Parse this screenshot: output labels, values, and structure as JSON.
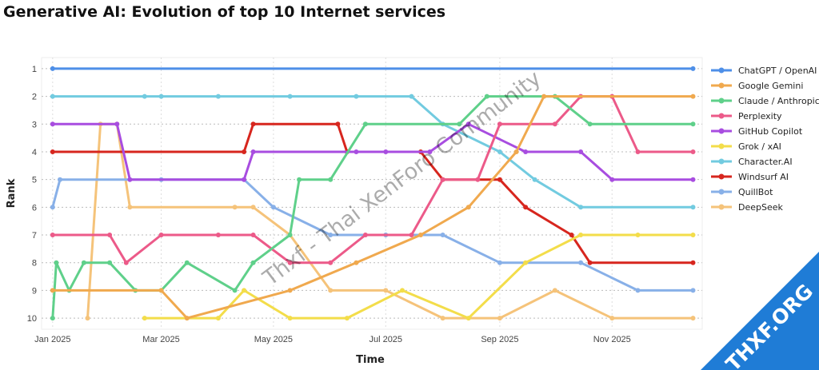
{
  "chart_data": {
    "type": "line",
    "title": "Generative AI: Evolution of top 10 Internet services",
    "xlabel": "Time",
    "ylabel": "Rank",
    "y_ticks": [
      "1",
      "2",
      "3",
      "4",
      "5",
      "6",
      "7",
      "8",
      "9",
      "10"
    ],
    "y_inverted": true,
    "ylim": [
      10.4,
      0.6
    ],
    "xlim": [
      "2024-12-26",
      "2025-12-20"
    ],
    "x_ticks": [
      {
        "date": "2025-01-01",
        "label": "Jan 2025"
      },
      {
        "date": "2025-03-01",
        "label": "Mar 2025"
      },
      {
        "date": "2025-05-01",
        "label": "May 2025"
      },
      {
        "date": "2025-07-01",
        "label": "Jul 2025"
      },
      {
        "date": "2025-09-01",
        "label": "Sep 2025"
      },
      {
        "date": "2025-11-01",
        "label": "Nov 2025"
      }
    ],
    "grid": true,
    "legend_position": "right",
    "series": [
      {
        "name": "ChatGPT / OpenAI",
        "color": "#4e8fe8",
        "points": [
          [
            "2025-01-01",
            1
          ],
          [
            "2025-12-15",
            1
          ]
        ]
      },
      {
        "name": "Google Gemini",
        "color": "#f0a94e",
        "points": [
          [
            "2025-01-01",
            9
          ],
          [
            "2025-03-01",
            9
          ],
          [
            "2025-03-15",
            10
          ],
          [
            "2025-05-10",
            9
          ],
          [
            "2025-06-15",
            8
          ],
          [
            "2025-07-20",
            7
          ],
          [
            "2025-08-15",
            6
          ],
          [
            "2025-09-10",
            4
          ],
          [
            "2025-09-25",
            2
          ],
          [
            "2025-12-15",
            2
          ]
        ]
      },
      {
        "name": "Claude / Anthropic",
        "color": "#5fd08a",
        "points": [
          [
            "2025-01-01",
            10
          ],
          [
            "2025-01-03",
            8
          ],
          [
            "2025-01-10",
            9
          ],
          [
            "2025-01-18",
            8
          ],
          [
            "2025-02-01",
            8
          ],
          [
            "2025-02-15",
            9
          ],
          [
            "2025-03-01",
            9
          ],
          [
            "2025-03-15",
            8
          ],
          [
            "2025-04-10",
            9
          ],
          [
            "2025-04-20",
            8
          ],
          [
            "2025-05-10",
            7
          ],
          [
            "2025-05-15",
            5
          ],
          [
            "2025-06-01",
            5
          ],
          [
            "2025-06-20",
            3
          ],
          [
            "2025-08-10",
            3
          ],
          [
            "2025-08-25",
            2
          ],
          [
            "2025-10-01",
            2
          ],
          [
            "2025-10-20",
            3
          ],
          [
            "2025-12-15",
            3
          ]
        ]
      },
      {
        "name": "Perplexity",
        "color": "#ec5a89",
        "points": [
          [
            "2025-01-01",
            7
          ],
          [
            "2025-02-01",
            7
          ],
          [
            "2025-02-10",
            8
          ],
          [
            "2025-03-01",
            7
          ],
          [
            "2025-04-01",
            7
          ],
          [
            "2025-04-20",
            7
          ],
          [
            "2025-05-10",
            8
          ],
          [
            "2025-06-01",
            8
          ],
          [
            "2025-06-20",
            7
          ],
          [
            "2025-07-15",
            7
          ],
          [
            "2025-08-01",
            5
          ],
          [
            "2025-08-20",
            5
          ],
          [
            "2025-09-01",
            3
          ],
          [
            "2025-10-01",
            3
          ],
          [
            "2025-10-15",
            2
          ],
          [
            "2025-11-01",
            2
          ],
          [
            "2025-11-15",
            4
          ],
          [
            "2025-12-15",
            4
          ]
        ]
      },
      {
        "name": "GitHub Copilot",
        "color": "#a84de0",
        "points": [
          [
            "2025-01-01",
            3
          ],
          [
            "2025-02-05",
            3
          ],
          [
            "2025-02-12",
            5
          ],
          [
            "2025-04-15",
            5
          ],
          [
            "2025-04-20",
            4
          ],
          [
            "2025-06-15",
            4
          ],
          [
            "2025-07-01",
            4
          ],
          [
            "2025-07-25",
            4
          ],
          [
            "2025-08-15",
            3
          ],
          [
            "2025-09-15",
            4
          ],
          [
            "2025-10-15",
            4
          ],
          [
            "2025-11-01",
            5
          ],
          [
            "2025-12-15",
            5
          ]
        ]
      },
      {
        "name": "Grok / xAI",
        "color": "#f3dd4a",
        "points": [
          [
            "2025-02-20",
            10
          ],
          [
            "2025-04-01",
            10
          ],
          [
            "2025-04-15",
            9
          ],
          [
            "2025-05-10",
            10
          ],
          [
            "2025-06-10",
            10
          ],
          [
            "2025-07-10",
            9
          ],
          [
            "2025-08-15",
            10
          ],
          [
            "2025-09-15",
            8
          ],
          [
            "2025-10-15",
            7
          ],
          [
            "2025-11-15",
            7
          ],
          [
            "2025-12-15",
            7
          ]
        ]
      },
      {
        "name": "Character.AI",
        "color": "#72cbe0",
        "points": [
          [
            "2025-01-01",
            2
          ],
          [
            "2025-02-20",
            2
          ],
          [
            "2025-03-01",
            2
          ],
          [
            "2025-04-01",
            2
          ],
          [
            "2025-05-10",
            2
          ],
          [
            "2025-06-15",
            2
          ],
          [
            "2025-07-15",
            2
          ],
          [
            "2025-08-01",
            3
          ],
          [
            "2025-09-01",
            4
          ],
          [
            "2025-09-20",
            5
          ],
          [
            "2025-10-15",
            6
          ],
          [
            "2025-12-15",
            6
          ]
        ]
      },
      {
        "name": "Windsurf AI",
        "color": "#d7261e",
        "points": [
          [
            "2025-01-01",
            4
          ],
          [
            "2025-04-15",
            4
          ],
          [
            "2025-04-20",
            3
          ],
          [
            "2025-06-05",
            3
          ],
          [
            "2025-06-10",
            4
          ],
          [
            "2025-07-20",
            4
          ],
          [
            "2025-08-01",
            5
          ],
          [
            "2025-09-01",
            5
          ],
          [
            "2025-09-15",
            6
          ],
          [
            "2025-10-10",
            7
          ],
          [
            "2025-10-20",
            8
          ],
          [
            "2025-12-15",
            8
          ]
        ]
      },
      {
        "name": "QuillBot",
        "color": "#88b0e8",
        "points": [
          [
            "2025-01-01",
            6
          ],
          [
            "2025-01-05",
            5
          ],
          [
            "2025-03-01",
            5
          ],
          [
            "2025-04-15",
            5
          ],
          [
            "2025-05-01",
            6
          ],
          [
            "2025-06-01",
            7
          ],
          [
            "2025-07-01",
            7
          ],
          [
            "2025-08-01",
            7
          ],
          [
            "2025-09-01",
            8
          ],
          [
            "2025-10-15",
            8
          ],
          [
            "2025-11-15",
            9
          ],
          [
            "2025-12-15",
            9
          ]
        ]
      },
      {
        "name": "DeepSeek",
        "color": "#f5c37a",
        "points": [
          [
            "2025-01-20",
            10
          ],
          [
            "2025-01-27",
            3
          ],
          [
            "2025-02-05",
            3
          ],
          [
            "2025-02-12",
            6
          ],
          [
            "2025-04-10",
            6
          ],
          [
            "2025-04-20",
            6
          ],
          [
            "2025-05-10",
            7
          ],
          [
            "2025-06-01",
            9
          ],
          [
            "2025-07-01",
            9
          ],
          [
            "2025-08-01",
            10
          ],
          [
            "2025-09-01",
            10
          ],
          [
            "2025-10-01",
            9
          ],
          [
            "2025-11-01",
            10
          ],
          [
            "2025-12-15",
            10
          ]
        ]
      }
    ]
  },
  "watermark": "Thxf - Thai XenForo Community",
  "corner_badge": "THXF.ORG"
}
